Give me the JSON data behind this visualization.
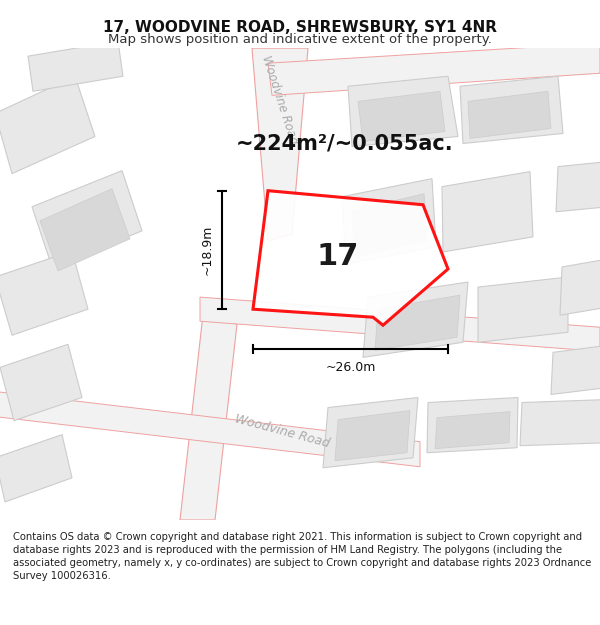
{
  "title": "17, WOODVINE ROAD, SHREWSBURY, SY1 4NR",
  "subtitle": "Map shows position and indicative extent of the property.",
  "area_text": "~224m²/~0.055ac.",
  "width_label": "~26.0m",
  "height_label": "~18.9m",
  "number_label": "17",
  "footer_text": "Contains OS data © Crown copyright and database right 2021. This information is subject to Crown copyright and database rights 2023 and is reproduced with the permission of HM Land Registry. The polygons (including the associated geometry, namely x, y co-ordinates) are subject to Crown copyright and database rights 2023 Ordnance Survey 100026316.",
  "bg_color": "#ffffff",
  "map_bg": "#f7f7f7",
  "road_fill": "#f2f2f2",
  "road_line": "#f0a0a0",
  "building_fill": "#e8e8e8",
  "building_line": "#cccccc",
  "building_inner_fill": "#d8d8d8",
  "highlight_line": "#ff0000",
  "road_label_color": "#aaaaaa",
  "title_fontsize": 11,
  "subtitle_fontsize": 9.5,
  "area_fontsize": 15,
  "number_fontsize": 22,
  "footer_fontsize": 7.2,
  "dim_fontsize": 9,
  "road_label_fontsize_upper": 8.5,
  "road_label_fontsize_lower": 9
}
